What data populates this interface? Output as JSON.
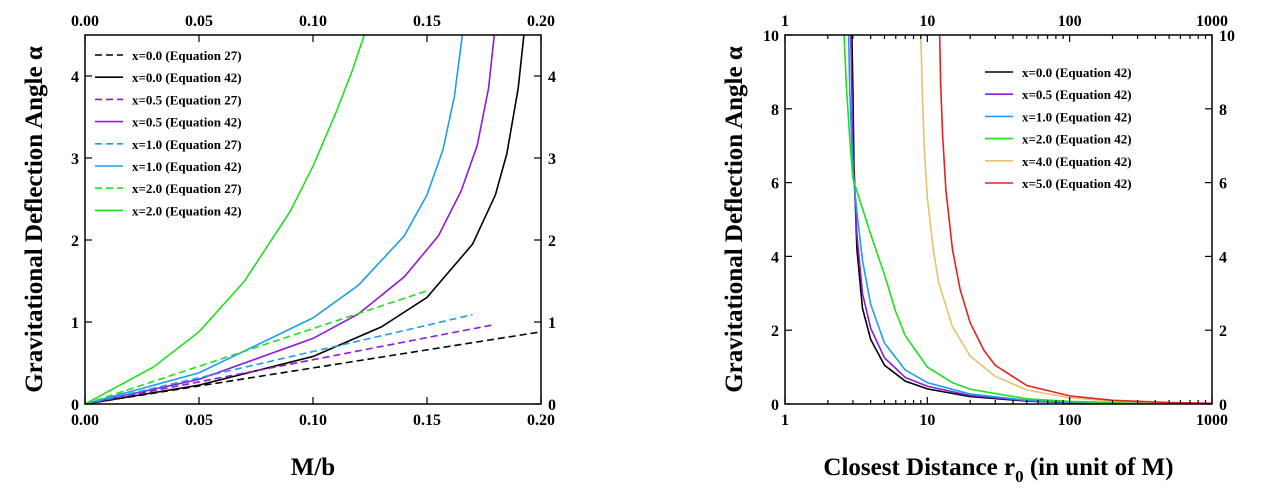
{
  "chart_data": [
    {
      "id": "left",
      "type": "line",
      "xlabel": "M/b",
      "ylabel": "Gravitational Deflection Angle α",
      "xlim": [
        0,
        0.2
      ],
      "ylim": [
        0,
        4.5
      ],
      "xticks": [
        0,
        0.05,
        0.1,
        0.15,
        0.2
      ],
      "xtick_labels": [
        "0.00",
        "0.05",
        "0.10",
        "0.15",
        "0.20"
      ],
      "yticks": [
        0,
        1,
        2,
        3,
        4
      ],
      "ytick_labels": [
        "0",
        "1",
        "2",
        "3",
        "4"
      ],
      "top_axis_labels": true,
      "right_axis_labels": true,
      "grid": false,
      "legend_position": "top-left",
      "series": [
        {
          "name": "x=0.0 (Equation 27)",
          "color": "#000000",
          "dash": "dashed",
          "x": [
            0,
            0.05,
            0.1,
            0.15,
            0.2
          ],
          "y": [
            0,
            0.22,
            0.44,
            0.66,
            0.88
          ]
        },
        {
          "name": "x=0.0 (Equation 42)",
          "color": "#000000",
          "dash": "solid",
          "x": [
            0,
            0.05,
            0.1,
            0.13,
            0.15,
            0.17,
            0.18,
            0.185,
            0.19,
            0.1925
          ],
          "y": [
            0,
            0.23,
            0.58,
            0.94,
            1.3,
            1.95,
            2.55,
            3.05,
            3.85,
            4.5
          ]
        },
        {
          "name": "x=0.5 (Equation 27)",
          "color": "#8b1be0",
          "dash": "dashed",
          "x": [
            0,
            0.05,
            0.1,
            0.15,
            0.18
          ],
          "y": [
            0,
            0.27,
            0.54,
            0.81,
            0.97
          ]
        },
        {
          "name": "x=0.5 (Equation 42)",
          "color": "#8b1be0",
          "dash": "solid",
          "x": [
            0,
            0.05,
            0.1,
            0.12,
            0.14,
            0.155,
            0.165,
            0.172,
            0.177,
            0.1795
          ],
          "y": [
            0,
            0.3,
            0.8,
            1.1,
            1.55,
            2.05,
            2.6,
            3.15,
            3.85,
            4.5
          ]
        },
        {
          "name": "x=1.0 (Equation 27)",
          "color": "#1e9ee8",
          "dash": "dashed",
          "x": [
            0,
            0.05,
            0.1,
            0.15,
            0.17
          ],
          "y": [
            0,
            0.32,
            0.64,
            0.96,
            1.09
          ]
        },
        {
          "name": "x=1.0 (Equation 42)",
          "color": "#1e9ee8",
          "dash": "solid",
          "x": [
            0,
            0.05,
            0.1,
            0.12,
            0.14,
            0.15,
            0.157,
            0.162,
            0.1655
          ],
          "y": [
            0,
            0.38,
            1.05,
            1.45,
            2.05,
            2.55,
            3.1,
            3.75,
            4.5
          ]
        },
        {
          "name": "x=2.0 (Equation 27)",
          "color": "#22dd22",
          "dash": "dashed",
          "x": [
            0,
            0.05,
            0.1,
            0.15
          ],
          "y": [
            0,
            0.46,
            0.92,
            1.38
          ]
        },
        {
          "name": "x=2.0 (Equation 42)",
          "color": "#22dd22",
          "dash": "solid",
          "x": [
            0,
            0.03,
            0.05,
            0.07,
            0.09,
            0.1,
            0.11,
            0.117,
            0.1225
          ],
          "y": [
            0,
            0.45,
            0.88,
            1.5,
            2.35,
            2.9,
            3.55,
            4.05,
            4.5
          ]
        }
      ]
    },
    {
      "id": "right",
      "type": "line",
      "xlabel": "Closest Distance r",
      "xlabel_sub": "0",
      "xlabel_suffix": " (in unit of M)",
      "ylabel": "Gravitational Deflection Angle α",
      "xscale": "log",
      "xlim": [
        1,
        1000
      ],
      "ylim": [
        0,
        10
      ],
      "xticks": [
        1,
        10,
        100,
        1000
      ],
      "xtick_labels": [
        "1",
        "10",
        "100",
        "1000"
      ],
      "yticks": [
        0,
        2,
        4,
        6,
        8,
        10
      ],
      "ytick_labels": [
        "0",
        "2",
        "4",
        "6",
        "8",
        "10"
      ],
      "top_axis_labels": true,
      "right_axis_labels": true,
      "grid": false,
      "legend_position": "top-right",
      "series": [
        {
          "name": "x=0.0 (Equation 42)",
          "color": "#000000",
          "dash": "solid",
          "x": [
            2.95,
            3.0,
            3.05,
            3.2,
            3.5,
            4,
            5,
            7,
            10,
            20,
            50,
            100,
            300,
            1000
          ],
          "y": [
            10,
            8.5,
            6.5,
            4.2,
            2.6,
            1.75,
            1.05,
            0.62,
            0.41,
            0.2,
            0.08,
            0.04,
            0.013,
            0.004
          ]
        },
        {
          "name": "x=0.5 (Equation 42)",
          "color": "#8b1be0",
          "dash": "solid",
          "x": [
            2.9,
            2.95,
            3.0,
            3.2,
            3.5,
            4,
            5,
            7,
            10,
            20,
            50,
            100,
            300,
            1000
          ],
          "y": [
            10,
            8.5,
            6.8,
            4.6,
            3.0,
            2.05,
            1.25,
            0.72,
            0.48,
            0.23,
            0.09,
            0.045,
            0.015,
            0.005
          ]
        },
        {
          "name": "x=1.0 (Equation 42)",
          "color": "#1e9ee8",
          "dash": "solid",
          "x": [
            2.8,
            2.85,
            2.95,
            3.0,
            3.2,
            3.5,
            4,
            5,
            7,
            10,
            20,
            50,
            100,
            300,
            1000
          ],
          "y": [
            10,
            8.5,
            7.0,
            6.3,
            5.2,
            3.9,
            2.7,
            1.65,
            0.92,
            0.58,
            0.27,
            0.1,
            0.05,
            0.017,
            0.005
          ]
        },
        {
          "name": "x=2.0 (Equation 42)",
          "color": "#22dd22",
          "dash": "solid",
          "x": [
            2.6,
            2.7,
            2.85,
            3.0,
            3.5,
            4,
            5,
            6,
            7,
            10,
            15,
            20,
            50,
            100,
            300,
            1000
          ],
          "y": [
            10,
            8.6,
            7.2,
            6.1,
            5.3,
            4.6,
            3.5,
            2.5,
            1.85,
            1.0,
            0.58,
            0.4,
            0.14,
            0.07,
            0.022,
            0.007
          ]
        },
        {
          "name": "x=4.0 (Equation 42)",
          "color": "#e6c170",
          "dash": "solid",
          "x": [
            9.0,
            9.2,
            9.5,
            10,
            11,
            12,
            15,
            20,
            30,
            50,
            100,
            200,
            500,
            1000
          ],
          "y": [
            10,
            8.6,
            7.0,
            5.6,
            4.2,
            3.3,
            2.1,
            1.3,
            0.75,
            0.38,
            0.17,
            0.08,
            0.03,
            0.015
          ]
        },
        {
          "name": "x=5.0 (Equation 42)",
          "color": "#e62020",
          "dash": "solid",
          "x": [
            12.2,
            12.4,
            12.8,
            13.5,
            15,
            17,
            20,
            25,
            30,
            50,
            100,
            200,
            500,
            1000
          ],
          "y": [
            10,
            8.7,
            7.3,
            5.8,
            4.2,
            3.1,
            2.2,
            1.45,
            1.05,
            0.5,
            0.22,
            0.1,
            0.04,
            0.018
          ]
        }
      ]
    }
  ]
}
